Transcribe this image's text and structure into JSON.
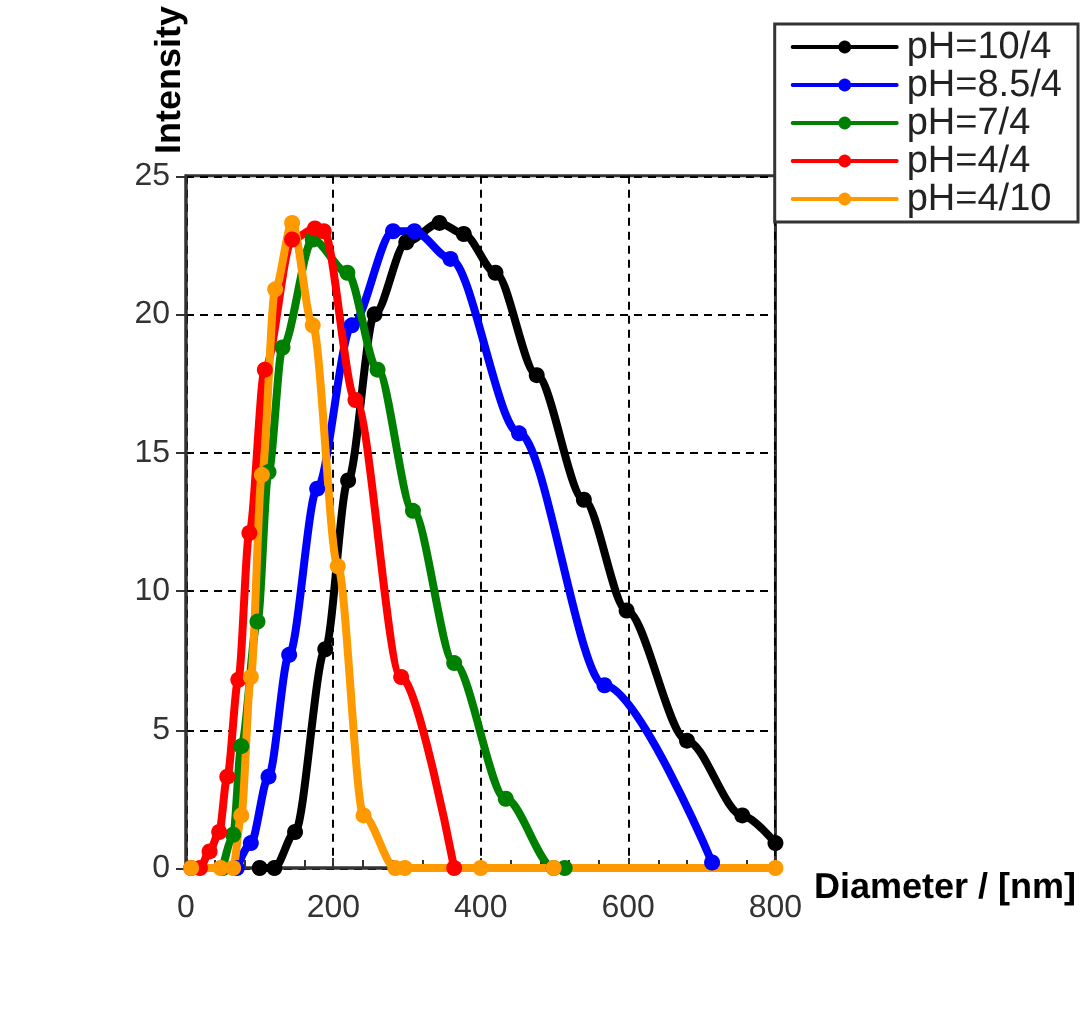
{
  "chart_data": {
    "type": "line",
    "xlabel": "Diameter / [nm]",
    "ylabel": "Intensity",
    "xlim": [
      0,
      800
    ],
    "ylim": [
      0,
      25
    ],
    "xticks": [
      0,
      200,
      400,
      600,
      800
    ],
    "yticks": [
      0,
      5,
      10,
      15,
      20,
      25
    ],
    "grid": true,
    "legend": "top right",
    "marker": "circle",
    "line_style": "solid",
    "series": [
      {
        "name": "pH=10/4",
        "color": "#000000",
        "x": [
          100,
          120,
          148,
          189,
          220,
          256,
          299,
          344,
          377,
          420,
          476,
          540,
          598,
          680,
          755,
          800
        ],
        "values": [
          0,
          0,
          1.3,
          7.9,
          14,
          20,
          22.6,
          23.3,
          22.9,
          21.5,
          17.8,
          13.3,
          9.3,
          4.6,
          1.9,
          0.9
        ]
      },
      {
        "name": "pH=8.5/4",
        "color": "#0000ff",
        "x": [
          69,
          88,
          112,
          140,
          178,
          225,
          281,
          310,
          359,
          452,
          568,
          714
        ],
        "values": [
          0,
          0.9,
          3.3,
          7.7,
          13.7,
          19.6,
          23.0,
          23.0,
          22.0,
          15.7,
          6.6,
          0.2
        ]
      },
      {
        "name": "pH=7/4",
        "color": "#008000",
        "x": [
          50,
          64,
          75,
          97,
          112,
          131,
          172,
          219,
          260,
          308,
          364,
          434,
          499,
          514
        ],
        "values": [
          0,
          1.2,
          4.4,
          8.9,
          14.3,
          18.8,
          22.7,
          21.5,
          18.0,
          12.9,
          7.4,
          2.5,
          0,
          0
        ]
      },
      {
        "name": "pH=4/4",
        "color": "#ff0000",
        "x": [
          7,
          19,
          32,
          45,
          56,
          71,
          86,
          107,
          144,
          175,
          187,
          230,
          292,
          364
        ],
        "values": [
          0,
          0,
          0.6,
          1.3,
          3.3,
          6.8,
          12.1,
          18.0,
          22.7,
          23.1,
          23.0,
          16.9,
          6.9,
          0
        ]
      },
      {
        "name": "pH=4/10",
        "color": "#ff9900",
        "x": [
          7,
          47,
          64,
          75,
          88,
          103,
          121,
          144,
          172,
          206,
          241,
          284,
          297,
          400,
          499,
          800
        ],
        "values": [
          0,
          0,
          0,
          1.9,
          6.9,
          14.2,
          20.9,
          23.3,
          19.6,
          10.9,
          1.9,
          0,
          0,
          0,
          0,
          0
        ]
      }
    ]
  }
}
